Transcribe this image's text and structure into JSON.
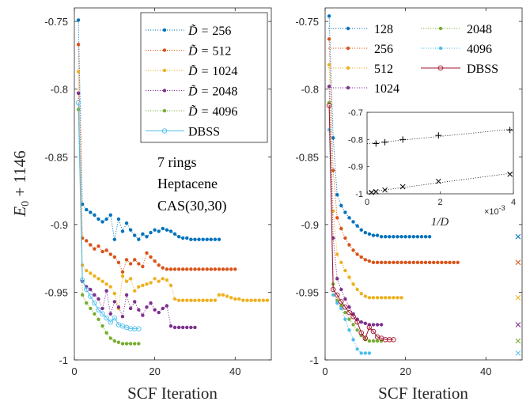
{
  "colors": {
    "c256": "#0072bd",
    "c512": "#d95319",
    "c1024": "#edb120",
    "c2048": "#7e2f8e",
    "c4096": "#77ac30",
    "cDbssLeft": "#4dbeee",
    "c128": "#0072bd",
    "cR256": "#d95319",
    "cR512": "#edb120",
    "cR1024": "#7e2f8e",
    "cR2048": "#77ac30",
    "cR4096": "#4dbeee",
    "cDbssRight": "#a2142f"
  },
  "chart_data": [
    {
      "type": "line",
      "panel": "left",
      "ylabel": "E_0 + 1146",
      "xlabel": "SCF Iteration",
      "xlim": [
        0,
        49
      ],
      "ylim": [
        -1,
        -0.74
      ],
      "xticks": [
        0,
        20,
        40
      ],
      "yticks": [
        -1,
        -0.95,
        -0.9,
        -0.85,
        -0.8,
        -0.75
      ],
      "ytick_labels": [
        "-1",
        "-0.95",
        "-0.9",
        "-0.85",
        "-0.8",
        "-0.75"
      ],
      "legend_position": "top-right",
      "annotation": [
        "7 rings",
        "Heptacene",
        "CAS(30,30)"
      ],
      "series": [
        {
          "name": "256",
          "color_key": "c256",
          "style": "dotted",
          "marker": "dot",
          "x": [
            1,
            2,
            3,
            4,
            5,
            6,
            7,
            8,
            9,
            10,
            11,
            12,
            13,
            14,
            15,
            16,
            17,
            18,
            19,
            20,
            21,
            22,
            23,
            24,
            25,
            26,
            27,
            28,
            29,
            30,
            31,
            32,
            33,
            34,
            35,
            36
          ],
          "y": [
            -0.749,
            -0.885,
            -0.889,
            -0.891,
            -0.893,
            -0.896,
            -0.898,
            -0.896,
            -0.893,
            -0.911,
            -0.896,
            -0.905,
            -0.899,
            -0.904,
            -0.908,
            -0.911,
            -0.907,
            -0.909,
            -0.906,
            -0.904,
            -0.905,
            -0.903,
            -0.904,
            -0.905,
            -0.907,
            -0.909,
            -0.91,
            -0.91,
            -0.911,
            -0.911,
            -0.911,
            -0.911,
            -0.911,
            -0.911,
            -0.911,
            -0.911
          ]
        },
        {
          "name": "512",
          "color_key": "c512",
          "style": "dotted",
          "marker": "dot",
          "x": [
            1,
            2,
            3,
            4,
            5,
            6,
            7,
            8,
            9,
            10,
            11,
            12,
            13,
            14,
            15,
            16,
            17,
            18,
            19,
            20,
            21,
            22,
            23,
            24,
            25,
            26,
            27,
            28,
            29,
            30,
            31,
            32,
            33,
            34,
            35,
            36,
            37,
            38,
            39,
            40
          ],
          "y": [
            -0.767,
            -0.91,
            -0.912,
            -0.915,
            -0.918,
            -0.916,
            -0.92,
            -0.919,
            -0.922,
            -0.924,
            -0.928,
            -0.935,
            -0.926,
            -0.929,
            -0.926,
            -0.929,
            -0.931,
            -0.921,
            -0.924,
            -0.927,
            -0.93,
            -0.932,
            -0.933,
            -0.933,
            -0.933,
            -0.933,
            -0.933,
            -0.933,
            -0.933,
            -0.933,
            -0.933,
            -0.933,
            -0.933,
            -0.933,
            -0.933,
            -0.933,
            -0.933,
            -0.933,
            -0.933,
            -0.933
          ]
        },
        {
          "name": "1024",
          "color_key": "c1024",
          "style": "dotted",
          "marker": "dot",
          "x": [
            1,
            2,
            3,
            4,
            5,
            6,
            7,
            8,
            9,
            10,
            11,
            12,
            13,
            14,
            15,
            16,
            17,
            18,
            19,
            20,
            21,
            22,
            23,
            24,
            25,
            26,
            27,
            28,
            29,
            30,
            31,
            32,
            33,
            34,
            35,
            36,
            37,
            38,
            39,
            40,
            41,
            42,
            43,
            44,
            45,
            46,
            47,
            48
          ],
          "y": [
            -0.787,
            -0.93,
            -0.934,
            -0.936,
            -0.938,
            -0.94,
            -0.942,
            -0.944,
            -0.946,
            -0.951,
            -0.962,
            -0.938,
            -0.942,
            -0.94,
            -0.949,
            -0.946,
            -0.945,
            -0.944,
            -0.943,
            -0.94,
            -0.942,
            -0.94,
            -0.941,
            -0.945,
            -0.955,
            -0.956,
            -0.956,
            -0.956,
            -0.956,
            -0.956,
            -0.956,
            -0.956,
            -0.956,
            -0.956,
            -0.956,
            -0.952,
            -0.952,
            -0.953,
            -0.954,
            -0.955,
            -0.955,
            -0.956,
            -0.956,
            -0.956,
            -0.956,
            -0.956,
            -0.956,
            -0.956
          ]
        },
        {
          "name": "2048",
          "color_key": "c2048",
          "style": "dotted",
          "marker": "dot",
          "x": [
            1,
            2,
            3,
            4,
            5,
            6,
            7,
            8,
            9,
            10,
            11,
            12,
            13,
            14,
            15,
            16,
            17,
            18,
            19,
            20,
            21,
            22,
            23,
            24,
            25,
            26,
            27,
            28,
            29,
            30
          ],
          "y": [
            -0.803,
            -0.942,
            -0.946,
            -0.948,
            -0.952,
            -0.955,
            -0.962,
            -0.949,
            -0.966,
            -0.957,
            -0.961,
            -0.968,
            -0.952,
            -0.962,
            -0.957,
            -0.963,
            -0.967,
            -0.961,
            -0.958,
            -0.963,
            -0.965,
            -0.962,
            -0.96,
            -0.975,
            -0.976,
            -0.976,
            -0.976,
            -0.976,
            -0.976,
            -0.976
          ]
        },
        {
          "name": "4096",
          "color_key": "c4096",
          "style": "dotted",
          "marker": "dot",
          "x": [
            1,
            2,
            3,
            4,
            5,
            6,
            7,
            8,
            9,
            10,
            11,
            12,
            13,
            14,
            15,
            16
          ],
          "y": [
            -0.815,
            -0.952,
            -0.958,
            -0.962,
            -0.966,
            -0.97,
            -0.975,
            -0.98,
            -0.984,
            -0.986,
            -0.987,
            -0.988,
            -0.988,
            -0.988,
            -0.988,
            -0.988
          ]
        },
        {
          "name": "DBSS",
          "color_key": "cDbssLeft",
          "style": "solid",
          "marker": "circle",
          "x": [
            1,
            2,
            3,
            4,
            5,
            6,
            7,
            8,
            9,
            10,
            11,
            12,
            13,
            14,
            15,
            16
          ],
          "y": [
            -0.81,
            -0.941,
            -0.948,
            -0.953,
            -0.958,
            -0.963,
            -0.966,
            -0.969,
            -0.972,
            -0.969,
            -0.974,
            -0.975,
            -0.976,
            -0.977,
            -0.977,
            -0.977
          ]
        }
      ]
    },
    {
      "type": "line",
      "panel": "right",
      "xlabel": "SCF Iteration",
      "xlim": [
        0,
        49
      ],
      "ylim": [
        -1,
        -0.74
      ],
      "xticks": [
        0,
        20,
        40
      ],
      "yticks": [
        -1,
        -0.95,
        -0.9,
        -0.85,
        -0.8,
        -0.75
      ],
      "ytick_labels": [
        "-1",
        "-0.95",
        "-0.9",
        "-0.85",
        "-0.8",
        "-0.75"
      ],
      "legend_position": "top",
      "series": [
        {
          "name": "128",
          "color_key": "c128",
          "style": "dotted",
          "marker": "dot",
          "x": [
            1,
            2,
            3,
            4,
            5,
            6,
            7,
            8,
            9,
            10,
            11,
            12,
            13,
            14,
            15,
            16,
            17,
            18,
            19,
            20,
            21,
            22,
            23,
            24,
            25,
            26
          ],
          "y": [
            -0.746,
            -0.836,
            -0.878,
            -0.886,
            -0.891,
            -0.895,
            -0.898,
            -0.901,
            -0.904,
            -0.906,
            -0.907,
            -0.908,
            -0.908,
            -0.909,
            -0.909,
            -0.909,
            -0.909,
            -0.909,
            -0.909,
            -0.909,
            -0.909,
            -0.909,
            -0.909,
            -0.909,
            -0.909,
            -0.909
          ]
        },
        {
          "name": "256",
          "color_key": "cR256",
          "style": "dotted",
          "marker": "dot",
          "x": [
            1,
            2,
            3,
            4,
            5,
            6,
            7,
            8,
            9,
            10,
            11,
            12,
            13,
            14,
            15,
            16,
            17,
            18,
            19,
            20,
            21,
            22,
            23,
            24,
            25,
            26,
            27,
            28,
            29,
            30,
            31,
            32,
            33
          ],
          "y": [
            -0.763,
            -0.86,
            -0.895,
            -0.903,
            -0.91,
            -0.915,
            -0.919,
            -0.922,
            -0.924,
            -0.926,
            -0.927,
            -0.928,
            -0.928,
            -0.928,
            -0.928,
            -0.928,
            -0.928,
            -0.928,
            -0.928,
            -0.928,
            -0.928,
            -0.928,
            -0.928,
            -0.928,
            -0.928,
            -0.928,
            -0.928,
            -0.928,
            -0.928,
            -0.928,
            -0.928,
            -0.928,
            -0.928
          ]
        },
        {
          "name": "512",
          "color_key": "cR512",
          "style": "dotted",
          "marker": "dot",
          "x": [
            1,
            2,
            3,
            4,
            5,
            6,
            7,
            8,
            9,
            10,
            11,
            12,
            13,
            14,
            15,
            16,
            17,
            18,
            19
          ],
          "y": [
            -0.782,
            -0.89,
            -0.922,
            -0.928,
            -0.934,
            -0.939,
            -0.944,
            -0.948,
            -0.951,
            -0.953,
            -0.954,
            -0.954,
            -0.954,
            -0.954,
            -0.954,
            -0.954,
            -0.954,
            -0.954,
            -0.954
          ]
        },
        {
          "name": "1024",
          "color_key": "cR1024",
          "style": "dotted",
          "marker": "dot",
          "x": [
            1,
            2,
            3,
            4,
            5,
            6,
            7,
            8,
            9,
            10,
            11,
            12,
            13,
            14
          ],
          "y": [
            -0.798,
            -0.91,
            -0.94,
            -0.948,
            -0.955,
            -0.961,
            -0.966,
            -0.97,
            -0.972,
            -0.973,
            -0.974,
            -0.974,
            -0.974,
            -0.974
          ]
        },
        {
          "name": "2048",
          "color_key": "cR2048",
          "style": "dotted",
          "marker": "dot",
          "x": [
            1,
            2,
            3,
            4,
            5,
            6,
            7,
            8,
            9,
            10,
            11,
            12,
            13,
            14
          ],
          "y": [
            -0.81,
            -0.944,
            -0.956,
            -0.96,
            -0.965,
            -0.97,
            -0.974,
            -0.978,
            -0.982,
            -0.985,
            -0.986,
            -0.986,
            -0.986,
            -0.986
          ]
        },
        {
          "name": "4096",
          "color_key": "cR4096",
          "style": "dotted",
          "marker": "dot",
          "x": [
            1,
            2,
            3,
            4,
            5,
            6,
            7,
            8,
            9,
            10,
            11
          ],
          "y": [
            -0.83,
            -0.952,
            -0.958,
            -0.962,
            -0.97,
            -0.978,
            -0.985,
            -0.992,
            -0.995,
            -0.995,
            -0.995
          ]
        },
        {
          "name": "DBSS",
          "color_key": "cDbssRight",
          "style": "solid",
          "marker": "circle",
          "x": [
            1,
            2,
            3,
            4,
            5,
            6,
            7,
            8,
            9,
            10,
            11,
            12,
            13,
            14,
            15,
            16,
            17
          ],
          "y": [
            -0.812,
            -0.948,
            -0.952,
            -0.957,
            -0.961,
            -0.965,
            -0.968,
            -0.972,
            -0.98,
            -0.984,
            -0.976,
            -0.979,
            -0.983,
            -0.984,
            -0.985,
            -0.985,
            -0.985
          ]
        }
      ],
      "extrapolated_markers": {
        "x": 48,
        "y": [
          -0.909,
          -0.928,
          -0.954,
          -0.974,
          -0.986,
          -0.995
        ],
        "color_keys": [
          "c128",
          "cR256",
          "cR512",
          "cR1024",
          "cR2048",
          "cR4096"
        ]
      },
      "inset": {
        "type": "scatter",
        "xlabel": "1/D",
        "x_multiplier": "×10",
        "x_exponent": "-3",
        "xlim": [
          0,
          4
        ],
        "ylim": [
          -1.0,
          -0.7
        ],
        "xticks": [
          0,
          2,
          4
        ],
        "yticks": [
          -1,
          -0.9,
          -0.8,
          -0.7
        ],
        "ytick_labels": [
          "-1",
          "-0.9",
          "-0.8",
          "-0.7"
        ],
        "series": [
          {
            "marker": "plus",
            "x": [
              0.244,
              0.488,
              0.977,
              1.953,
              3.906
            ],
            "y": [
              -0.815,
              -0.81,
              -0.8,
              -0.785,
              -0.765
            ]
          },
          {
            "marker": "cross",
            "x": [
              0.122,
              0.244,
              0.488,
              0.977,
              1.953,
              3.906
            ],
            "y": [
              -0.995,
              -0.992,
              -0.986,
              -0.974,
              -0.954,
              -0.928
            ]
          }
        ]
      }
    }
  ],
  "legend_left": {
    "entries": [
      "256",
      "512",
      "1024",
      "2048",
      "4096",
      "DBSS"
    ],
    "prefix": "D̃ = "
  },
  "annotation_left": {
    "line1": "7 rings",
    "line2": "Heptacene",
    "line3": "CAS(30,30)"
  }
}
